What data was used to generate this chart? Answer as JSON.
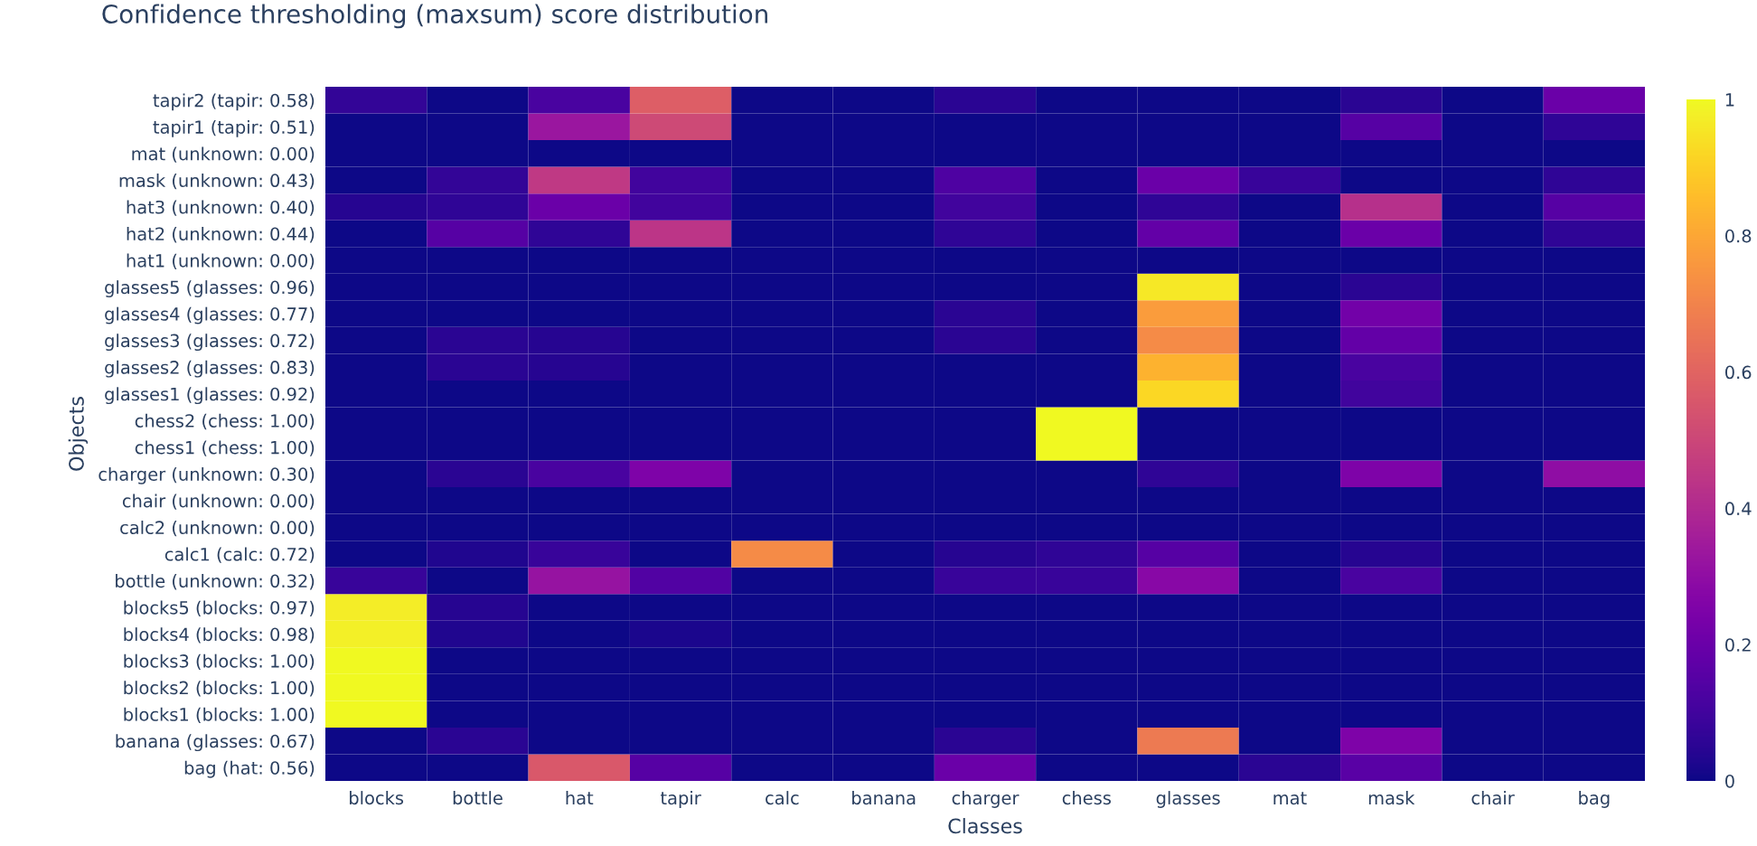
{
  "chart_data": {
    "type": "heatmap",
    "title": "Confidence thresholding (maxsum) score distribution",
    "xlabel": "Classes",
    "ylabel": "Objects",
    "categories": [
      "blocks",
      "bottle",
      "hat",
      "tapir",
      "calc",
      "banana",
      "charger",
      "chess",
      "glasses",
      "mat",
      "mask",
      "chair",
      "bag"
    ],
    "y_categories": [
      "tapir2 (tapir: 0.58)",
      "tapir1 (tapir: 0.51)",
      "mat (unknown: 0.00)",
      "mask (unknown: 0.43)",
      "hat3 (unknown: 0.40)",
      "hat2 (unknown: 0.44)",
      "hat1 (unknown: 0.00)",
      "glasses5 (glasses: 0.96)",
      "glasses4 (glasses: 0.77)",
      "glasses3 (glasses: 0.72)",
      "glasses2 (glasses: 0.83)",
      "glasses1 (glasses: 0.92)",
      "chess2 (chess: 1.00)",
      "chess1 (chess: 1.00)",
      "charger (unknown: 0.30)",
      "chair (unknown: 0.00)",
      "calc2 (unknown: 0.00)",
      "calc1 (calc: 0.72)",
      "bottle (unknown: 0.32)",
      "blocks5 (blocks: 0.97)",
      "blocks4 (blocks: 0.98)",
      "blocks3 (blocks: 1.00)",
      "blocks2 (blocks: 1.00)",
      "blocks1 (blocks: 1.00)",
      "banana (glasses: 0.67)",
      "bag (hat: 0.56)"
    ],
    "cells": [
      [
        0.07,
        0,
        0.12,
        0.58,
        0,
        0,
        0.05,
        0,
        0,
        0,
        0.05,
        0,
        0.2
      ],
      [
        0,
        0,
        0.33,
        0.51,
        0,
        0,
        0,
        0,
        0,
        0,
        0.15,
        0,
        0.06
      ],
      [
        0,
        0,
        0,
        0,
        0,
        0,
        0,
        0,
        0,
        0,
        0,
        0,
        0
      ],
      [
        0,
        0.07,
        0.45,
        0.1,
        0,
        0,
        0.13,
        0,
        0.2,
        0.08,
        0,
        0,
        0.06
      ],
      [
        0.04,
        0.06,
        0.2,
        0.1,
        0,
        0,
        0.1,
        0,
        0.06,
        0,
        0.42,
        0,
        0.15
      ],
      [
        0,
        0.15,
        0.06,
        0.44,
        0,
        0,
        0.06,
        0,
        0.18,
        0,
        0.2,
        0,
        0.06
      ],
      [
        0,
        0,
        0,
        0,
        0,
        0,
        0,
        0,
        0,
        0,
        0,
        0,
        0
      ],
      [
        0,
        0,
        0,
        0,
        0,
        0,
        0,
        0,
        0.96,
        0,
        0.05,
        0,
        0
      ],
      [
        0,
        0,
        0,
        0,
        0,
        0,
        0.05,
        0,
        0.77,
        0,
        0.22,
        0,
        0
      ],
      [
        0,
        0.05,
        0.04,
        0,
        0,
        0,
        0.05,
        0,
        0.72,
        0,
        0.18,
        0,
        0
      ],
      [
        0,
        0.05,
        0.04,
        0,
        0,
        0,
        0,
        0,
        0.83,
        0,
        0.12,
        0,
        0
      ],
      [
        0,
        0,
        0,
        0,
        0,
        0,
        0,
        0,
        0.92,
        0,
        0.1,
        0,
        0
      ],
      [
        0,
        0,
        0,
        0,
        0,
        0,
        0,
        1.0,
        0,
        0,
        0,
        0,
        0
      ],
      [
        0,
        0,
        0,
        0,
        0,
        0,
        0,
        1.0,
        0,
        0,
        0,
        0,
        0
      ],
      [
        0,
        0.05,
        0.12,
        0.25,
        0,
        0,
        0,
        0,
        0.06,
        0,
        0.25,
        0,
        0.3
      ],
      [
        0,
        0,
        0,
        0,
        0,
        0,
        0,
        0,
        0,
        0,
        0,
        0,
        0
      ],
      [
        0,
        0,
        0,
        0,
        0,
        0,
        0,
        0,
        0,
        0,
        0,
        0,
        0
      ],
      [
        0,
        0.03,
        0.08,
        0,
        0.72,
        0,
        0.04,
        0.06,
        0.15,
        0,
        0.04,
        0,
        0
      ],
      [
        0.08,
        0,
        0.32,
        0.14,
        0,
        0,
        0.08,
        0.08,
        0.28,
        0,
        0.12,
        0,
        0
      ],
      [
        0.97,
        0.04,
        0,
        0,
        0,
        0,
        0,
        0,
        0,
        0,
        0,
        0,
        0
      ],
      [
        0.98,
        0.03,
        0,
        0.02,
        0,
        0,
        0,
        0,
        0,
        0,
        0,
        0,
        0
      ],
      [
        1.0,
        0,
        0,
        0,
        0,
        0,
        0,
        0,
        0,
        0,
        0,
        0,
        0
      ],
      [
        1.0,
        0,
        0,
        0,
        0,
        0,
        0,
        0,
        0,
        0,
        0,
        0,
        0
      ],
      [
        1.0,
        0,
        0,
        0,
        0,
        0,
        0,
        0,
        0,
        0,
        0,
        0,
        0
      ],
      [
        0,
        0.05,
        0,
        0,
        0,
        0,
        0.05,
        0,
        0.67,
        0,
        0.25,
        0,
        0
      ],
      [
        0,
        0,
        0.56,
        0.15,
        0,
        0,
        0.2,
        0,
        0,
        0.05,
        0.16,
        0,
        0
      ]
    ],
    "clim": [
      0,
      1
    ],
    "cticks": [
      0,
      0.2,
      0.4,
      0.6,
      0.8,
      1
    ],
    "grid": false
  }
}
